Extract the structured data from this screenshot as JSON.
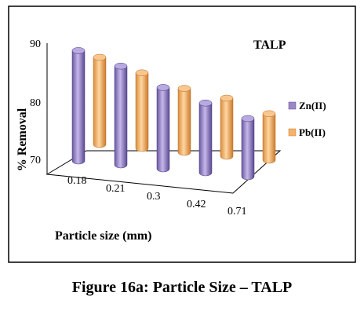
{
  "chart_data": {
    "type": "bar",
    "title": "TALP",
    "xlabel": "Particle size (mm)",
    "ylabel": "% Removal",
    "categories": [
      "0.18",
      "0.21",
      "0.3",
      "0.42",
      "0.71"
    ],
    "series": [
      {
        "name": "Zn(II)",
        "values": [
          89,
          87,
          84,
          82,
          80
        ]
      },
      {
        "name": "Pb(II)",
        "values": [
          85,
          83,
          81,
          80,
          78
        ]
      }
    ],
    "ylim": [
      70,
      90
    ],
    "yticks": [
      "90",
      "80",
      "70"
    ],
    "legend_position": "right",
    "grid": false,
    "style": "3d-cylinder",
    "colors": {
      "Zn(II)": "#9b87c8",
      "Pb(II)": "#f5b26a"
    }
  },
  "caption": "Figure 16a: Particle Size – TALP"
}
